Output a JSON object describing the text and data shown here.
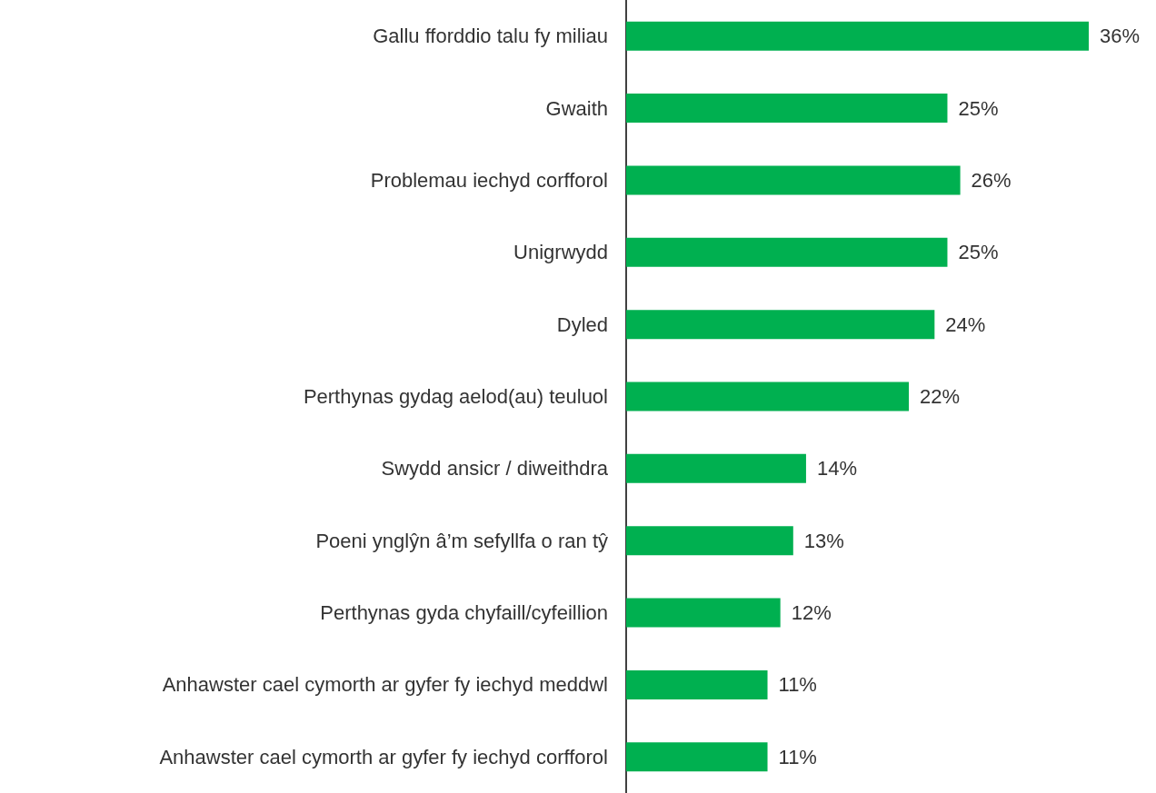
{
  "chart_data": {
    "type": "bar",
    "orientation": "horizontal",
    "categories": [
      "Gallu fforddio talu fy miliau",
      "Gwaith",
      "Problemau iechyd corfforol",
      "Unigrwydd",
      "Dyled",
      "Perthynas gydag aelod(au) teuluol",
      "Swydd ansicr / diweithdra",
      "Poeni ynglŷn â’m sefyllfa o ran tŷ",
      "Perthynas gyda chyfaill/cyfeillion",
      "Anhawster cael cymorth ar gyfer fy iechyd meddwl",
      "Anhawster cael cymorth ar gyfer fy iechyd corfforol"
    ],
    "values": [
      36,
      25,
      26,
      25,
      24,
      22,
      14,
      13,
      12,
      11,
      11
    ],
    "value_labels": [
      "36%",
      "25%",
      "26%",
      "25%",
      "24%",
      "22%",
      "14%",
      "13%",
      "12%",
      "11%",
      "11%"
    ],
    "color": "#00b050"
  }
}
